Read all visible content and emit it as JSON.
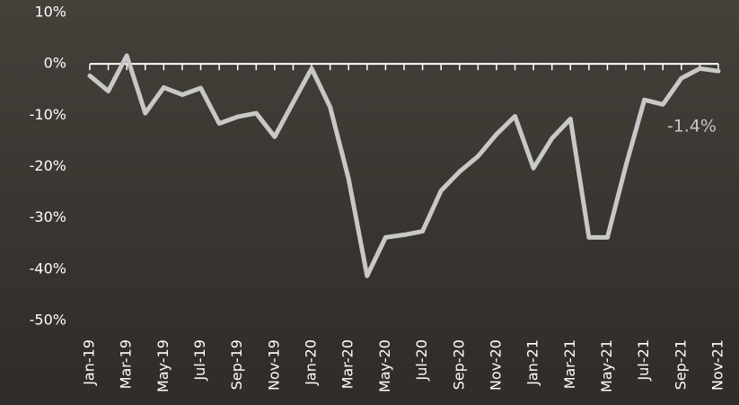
{
  "chart_data": {
    "type": "line",
    "categories": [
      "Jan-19",
      null,
      "Mar-19",
      null,
      "May-19",
      null,
      "Jul-19",
      null,
      "Sep-19",
      null,
      "Nov-19",
      null,
      "Jan-20",
      null,
      "Mar-20",
      null,
      "May-20",
      null,
      "Jul-20",
      null,
      "Sep-20",
      null,
      "Nov-20",
      null,
      "Jan-21",
      null,
      "Mar-21",
      null,
      "May-21",
      null,
      "Jul-21",
      null,
      "Sep-21",
      null,
      "Nov-21"
    ],
    "series": [
      {
        "color": "#c8c8c8",
        "values": [
          -2.3,
          -5.3,
          1.6,
          -9.6,
          -4.6,
          -6,
          -4.7,
          -11.6,
          -10.3,
          -9.6,
          -14.2,
          -7.5,
          -0.9,
          -8.4,
          -22.4,
          -41.3,
          -33.8,
          -33.3,
          -32.6,
          -24.7,
          -21,
          -18,
          -13.7,
          -10.2,
          -20.3,
          -14.5,
          -10.7,
          -33.8,
          -33.8,
          -19.8,
          -7,
          -7.9,
          -2.8,
          -0.9,
          -1.4
        ],
        "value_labels": [
          null,
          null,
          null,
          null,
          null,
          null,
          null,
          null,
          null,
          null,
          null,
          null,
          null,
          null,
          null,
          null,
          null,
          null,
          null,
          null,
          null,
          null,
          null,
          null,
          null,
          null,
          null,
          null,
          null,
          null,
          null,
          null,
          null,
          null,
          "-1.4%"
        ]
      }
    ],
    "ylim": [
      -50,
      10
    ],
    "yticks": [
      {
        "value": 10,
        "label": "10%"
      },
      {
        "value": 0,
        "label": "0%"
      },
      {
        "value": -10,
        "label": "-10%"
      },
      {
        "value": -20,
        "label": "-20%"
      },
      {
        "value": -30,
        "label": "-30%"
      },
      {
        "value": -40,
        "label": "-40%"
      },
      {
        "value": -50,
        "label": "-50%"
      }
    ],
    "x_axis_position": 0
  }
}
